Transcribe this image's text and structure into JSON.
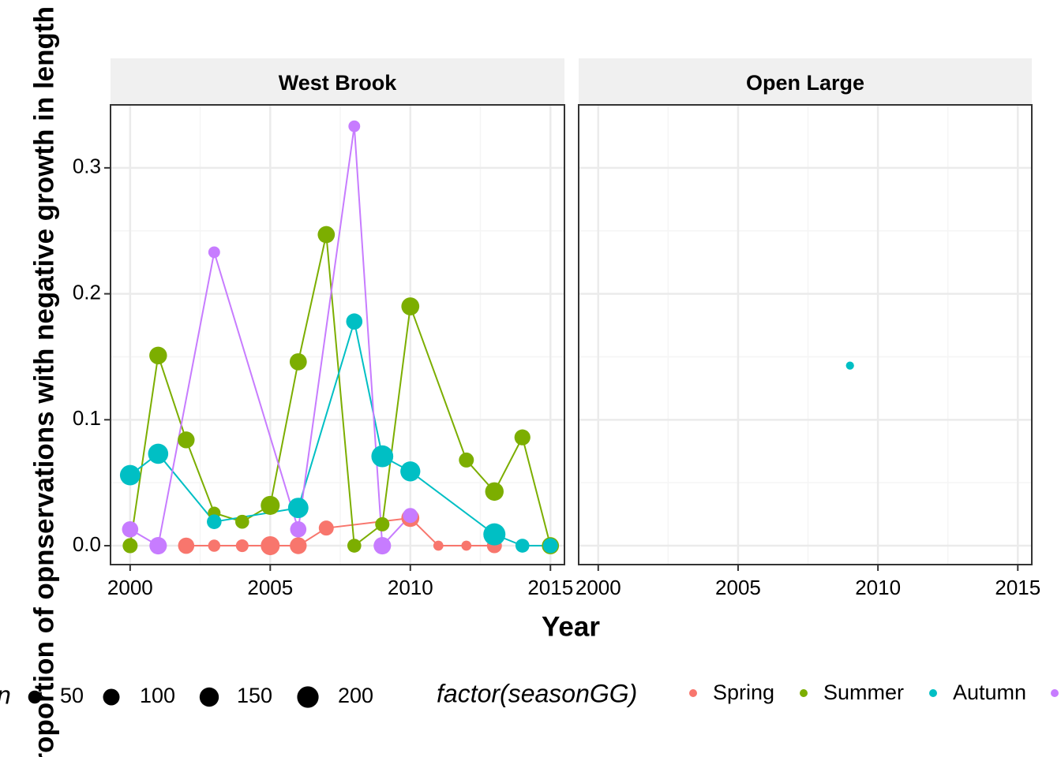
{
  "chart_data": {
    "type": "scatter",
    "xlabel": "Year",
    "ylabel": "Proportion of opnservations with negative growth in length",
    "xlim": [
      1999.3,
      2015.5
    ],
    "ylim": [
      -0.015,
      0.35
    ],
    "x_ticks": [
      "2000",
      "2005",
      "2010",
      "2015"
    ],
    "y_ticks": [
      "0.0",
      "0.1",
      "0.2",
      "0.3"
    ],
    "x_tick_values": [
      2000,
      2005,
      2010,
      2015
    ],
    "y_tick_values": [
      0.0,
      0.1,
      0.2,
      0.3
    ],
    "grid": true,
    "legend_position": "bottom",
    "legends": {
      "size": {
        "title": "n",
        "entries": [
          {
            "label": "50",
            "value": 50
          },
          {
            "label": "100",
            "value": 100
          },
          {
            "label": "150",
            "value": 150
          },
          {
            "label": "200",
            "value": 200
          }
        ]
      },
      "color": {
        "title": "factor(seasonGG)",
        "entries": [
          {
            "label": "Spring",
            "color": "#F8766D"
          },
          {
            "label": "Summer",
            "color": "#7CAE00"
          },
          {
            "label": "Autumn",
            "color": "#00BFC4"
          },
          {
            "label": "",
            "color": "#C77CFF"
          }
        ]
      }
    },
    "panels": [
      {
        "title": "West Brook",
        "series": [
          {
            "name": "Spring",
            "color": "#F8766D",
            "points": [
              {
                "x": 2002,
                "y": 0.0,
                "n": 95
              },
              {
                "x": 2003,
                "y": 0.0,
                "n": 40
              },
              {
                "x": 2004,
                "y": 0.0,
                "n": 45
              },
              {
                "x": 2005,
                "y": 0.0,
                "n": 145
              },
              {
                "x": 2006,
                "y": 0.0,
                "n": 105
              },
              {
                "x": 2007,
                "y": 0.014,
                "n": 75
              },
              {
                "x": 2010,
                "y": 0.022,
                "n": 125
              },
              {
                "x": 2011,
                "y": 0.0,
                "n": 20
              },
              {
                "x": 2012,
                "y": 0.0,
                "n": 20
              },
              {
                "x": 2013,
                "y": 0.0,
                "n": 75
              }
            ]
          },
          {
            "name": "Summer",
            "color": "#7CAE00",
            "points": [
              {
                "x": 2000,
                "y": 0.0,
                "n": 75
              },
              {
                "x": 2001,
                "y": 0.151,
                "n": 120
              },
              {
                "x": 2002,
                "y": 0.084,
                "n": 105
              },
              {
                "x": 2003,
                "y": 0.026,
                "n": 45
              },
              {
                "x": 2004,
                "y": 0.019,
                "n": 60
              },
              {
                "x": 2005,
                "y": 0.032,
                "n": 145
              },
              {
                "x": 2006,
                "y": 0.146,
                "n": 110
              },
              {
                "x": 2007,
                "y": 0.247,
                "n": 110
              },
              {
                "x": 2008,
                "y": 0.0,
                "n": 60
              },
              {
                "x": 2009,
                "y": 0.017,
                "n": 65
              },
              {
                "x": 2010,
                "y": 0.19,
                "n": 125
              },
              {
                "x": 2012,
                "y": 0.068,
                "n": 75
              },
              {
                "x": 2013,
                "y": 0.043,
                "n": 135
              },
              {
                "x": 2014,
                "y": 0.086,
                "n": 90
              },
              {
                "x": 2015,
                "y": 0.0,
                "n": 110
              }
            ]
          },
          {
            "name": "Autumn",
            "color": "#00BFC4",
            "points": [
              {
                "x": 2000,
                "y": 0.056,
                "n": 175
              },
              {
                "x": 2001,
                "y": 0.073,
                "n": 170
              },
              {
                "x": 2003,
                "y": 0.019,
                "n": 70
              },
              {
                "x": 2006,
                "y": 0.03,
                "n": 175
              },
              {
                "x": 2008,
                "y": 0.178,
                "n": 95
              },
              {
                "x": 2009,
                "y": 0.071,
                "n": 210
              },
              {
                "x": 2010,
                "y": 0.059,
                "n": 165
              },
              {
                "x": 2013,
                "y": 0.009,
                "n": 215
              },
              {
                "x": 2014,
                "y": 0.0,
                "n": 60
              },
              {
                "x": 2015,
                "y": 0.0,
                "n": 75
              }
            ]
          },
          {
            "name": "",
            "color": "#C77CFF",
            "points": [
              {
                "x": 2000,
                "y": 0.013,
                "n": 95
              },
              {
                "x": 2001,
                "y": 0.0,
                "n": 115
              },
              {
                "x": 2003,
                "y": 0.233,
                "n": 35
              },
              {
                "x": 2006,
                "y": 0.013,
                "n": 95
              },
              {
                "x": 2008,
                "y": 0.333,
                "n": 35
              },
              {
                "x": 2009,
                "y": 0.0,
                "n": 115
              },
              {
                "x": 2010,
                "y": 0.024,
                "n": 75
              }
            ]
          }
        ]
      },
      {
        "title": "Open Large",
        "series": [
          {
            "name": "Autumn",
            "color": "#00BFC4",
            "points": [
              {
                "x": 2009,
                "y": 0.143,
                "n": 8
              }
            ]
          }
        ]
      }
    ]
  }
}
